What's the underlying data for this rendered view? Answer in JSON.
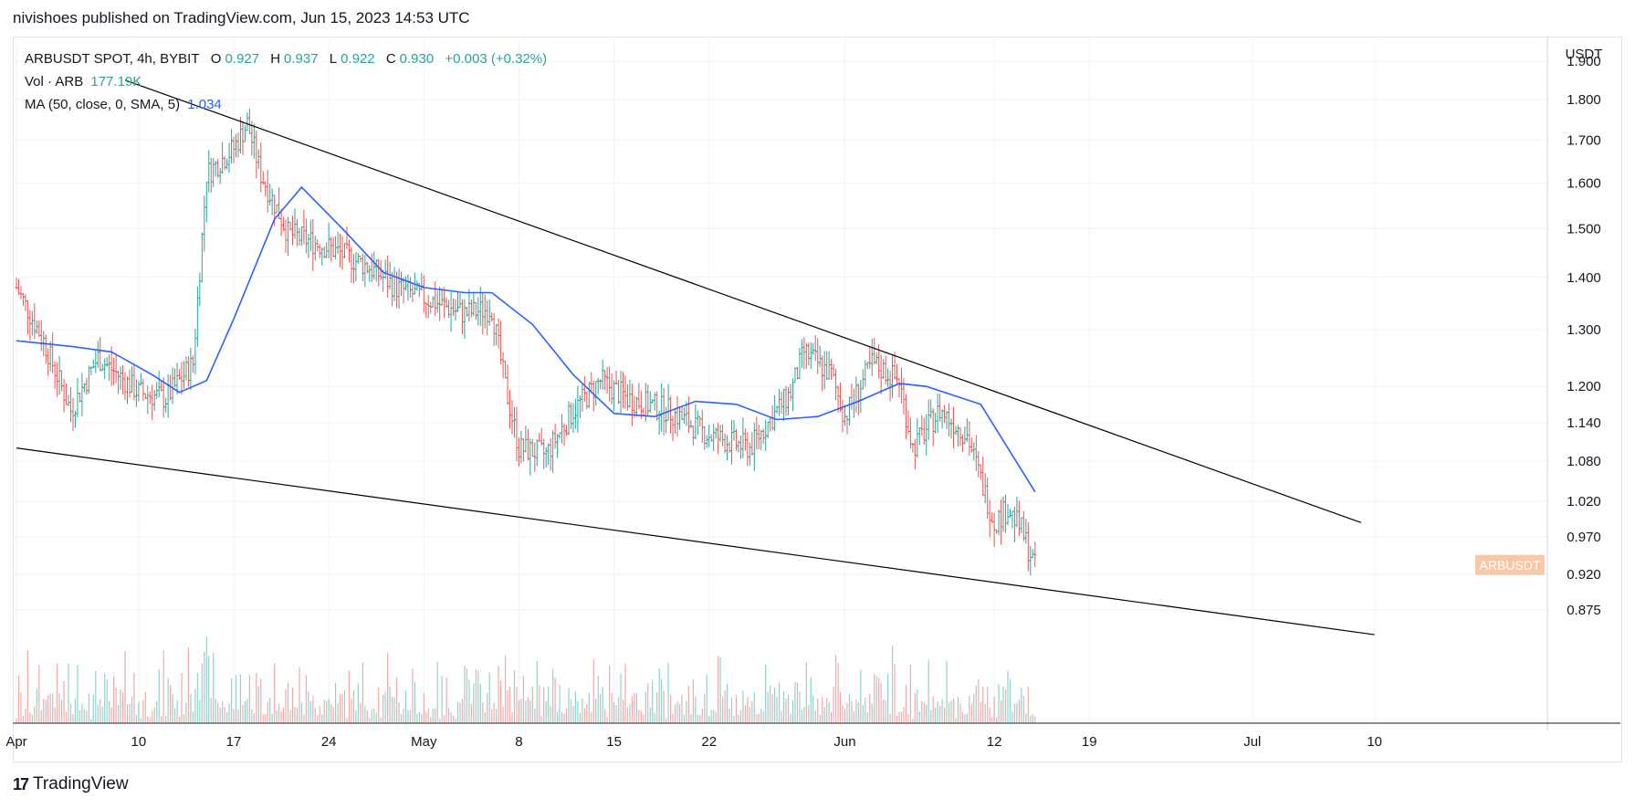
{
  "header": {
    "published": "nivishoes published on TradingView.com, Jun 15, 2023 14:53 UTC"
  },
  "legend": {
    "symbol": "ARBUSDT SPOT, 4h, BYBIT",
    "o_label": "O",
    "o_value": "0.927",
    "h_label": "H",
    "h_value": "0.937",
    "l_label": "L",
    "l_value": "0.922",
    "c_label": "C",
    "c_value": "0.930",
    "change": "+0.003 (+0.32%)",
    "vol_label": "Vol · ARB",
    "vol_value": "177.19K",
    "ma_label": "MA (50, close, 0, SMA, 5)",
    "ma_value": "1.034"
  },
  "footer": {
    "logo": "17",
    "brand": "TradingView"
  },
  "colors": {
    "up": "#26a69a",
    "down": "#ef5350",
    "ma": "#2962ff",
    "trendline": "#000000",
    "grid": "#f0f3fa",
    "price_tag": "#f7c8a8"
  },
  "chart_data": {
    "type": "candlestick",
    "symbol": "ARBUSDT",
    "unit": "USDT",
    "price_scale": "log",
    "y_ticks": [
      "1.900",
      "1.800",
      "1.700",
      "1.600",
      "1.500",
      "1.400",
      "1.300",
      "1.200",
      "1.140",
      "1.080",
      "1.020",
      "0.970",
      "0.920",
      "0.875"
    ],
    "y_tick_values": [
      1.9,
      1.8,
      1.7,
      1.6,
      1.5,
      1.4,
      1.3,
      1.2,
      1.14,
      1.08,
      1.02,
      0.97,
      0.92,
      0.875
    ],
    "x_ticks": [
      "Apr",
      "10",
      "17",
      "24",
      "May",
      "8",
      "15",
      "22",
      "Jun",
      "12",
      "19",
      "Jul",
      "10"
    ],
    "x_tick_dates": [
      "2023-04-01",
      "2023-04-10",
      "2023-04-17",
      "2023-04-24",
      "2023-05-01",
      "2023-05-08",
      "2023-05-15",
      "2023-05-22",
      "2023-06-01",
      "2023-06-12",
      "2023-06-19",
      "2023-07-01",
      "2023-07-10"
    ],
    "price_label": "ARBUSDT",
    "last_close": 0.93,
    "grid": true,
    "close_series": {
      "dates": [
        "2023-04-01",
        "2023-04-03",
        "2023-04-05",
        "2023-04-07",
        "2023-04-10",
        "2023-04-12",
        "2023-04-14",
        "2023-04-15",
        "2023-04-17",
        "2023-04-18",
        "2023-04-19",
        "2023-04-21",
        "2023-04-24",
        "2023-04-27",
        "2023-04-29",
        "2023-05-01",
        "2023-05-04",
        "2023-05-06",
        "2023-05-07",
        "2023-05-08",
        "2023-05-10",
        "2023-05-12",
        "2023-05-14",
        "2023-05-16",
        "2023-05-19",
        "2023-05-22",
        "2023-05-25",
        "2023-05-28",
        "2023-05-29",
        "2023-05-31",
        "2023-06-01",
        "2023-06-03",
        "2023-06-05",
        "2023-06-06",
        "2023-06-08",
        "2023-06-09",
        "2023-06-10",
        "2023-06-12",
        "2023-06-13",
        "2023-06-14",
        "2023-06-15"
      ],
      "values": [
        1.38,
        1.28,
        1.16,
        1.25,
        1.19,
        1.18,
        1.24,
        1.62,
        1.68,
        1.74,
        1.62,
        1.49,
        1.46,
        1.42,
        1.38,
        1.36,
        1.33,
        1.34,
        1.2,
        1.1,
        1.09,
        1.16,
        1.21,
        1.18,
        1.16,
        1.12,
        1.1,
        1.19,
        1.26,
        1.22,
        1.15,
        1.24,
        1.21,
        1.1,
        1.16,
        1.14,
        1.12,
        0.99,
        1.01,
        0.98,
        0.93
      ]
    },
    "ma_series": {
      "name": "MA (50, close, 0, SMA, 5)",
      "dates": [
        "2023-04-01",
        "2023-04-05",
        "2023-04-08",
        "2023-04-11",
        "2023-04-13",
        "2023-04-15",
        "2023-04-17",
        "2023-04-20",
        "2023-04-22",
        "2023-04-25",
        "2023-04-28",
        "2023-05-01",
        "2023-05-04",
        "2023-05-06",
        "2023-05-09",
        "2023-05-12",
        "2023-05-15",
        "2023-05-18",
        "2023-05-21",
        "2023-05-24",
        "2023-05-27",
        "2023-05-30",
        "2023-06-02",
        "2023-06-05",
        "2023-06-07",
        "2023-06-09",
        "2023-06-11",
        "2023-06-13",
        "2023-06-15"
      ],
      "values": [
        1.28,
        1.27,
        1.26,
        1.22,
        1.19,
        1.21,
        1.32,
        1.52,
        1.59,
        1.5,
        1.41,
        1.38,
        1.37,
        1.37,
        1.31,
        1.22,
        1.155,
        1.15,
        1.175,
        1.17,
        1.145,
        1.15,
        1.175,
        1.205,
        1.2,
        1.185,
        1.17,
        1.1,
        1.034
      ]
    },
    "volume": {
      "label": "Vol · ARB",
      "last": "177.19K"
    },
    "trendlines": [
      {
        "name": "upper",
        "from": {
          "date": "2023-04-09",
          "price": 1.85
        },
        "to": {
          "date": "2023-07-09",
          "price": 0.99
        }
      },
      {
        "name": "lower",
        "from": {
          "date": "2023-04-01",
          "price": 1.1
        },
        "to": {
          "date": "2023-07-10",
          "price": 0.845
        }
      }
    ]
  }
}
